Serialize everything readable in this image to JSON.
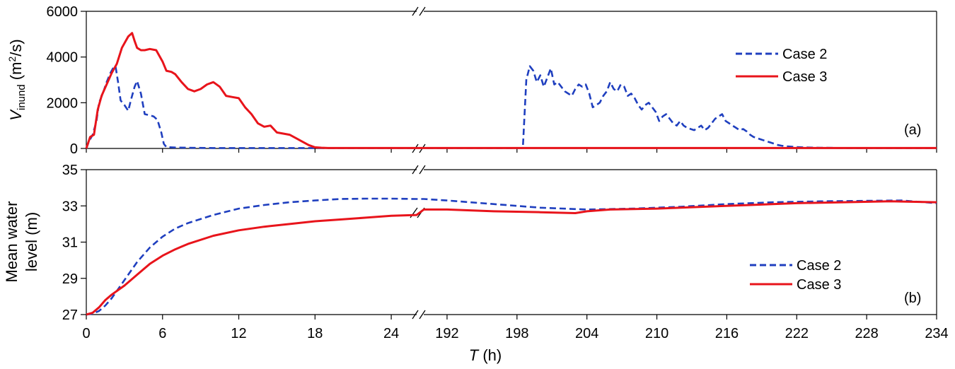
{
  "chart_data": [
    {
      "type": "line",
      "panel_label": "(a)",
      "ylabel_main": "V",
      "ylabel_sub": "inund",
      "ylabel_unit_pre": " (m",
      "ylabel_unit_sup": "2",
      "ylabel_unit_post": "/s)",
      "ylim": [
        0,
        6000
      ],
      "yticks": [
        "0",
        "2000",
        "4000",
        "6000"
      ],
      "yticks_values": [
        0,
        2000,
        4000,
        6000
      ],
      "grid": false,
      "legend_position": "top-right",
      "series": [
        {
          "name": "Case 2",
          "color": "#1f3fbf",
          "dash": "dashed",
          "x": [
            0,
            0.2,
            0.5,
            0.8,
            1.0,
            1.3,
            1.6,
            1.9,
            2.1,
            2.3,
            2.5,
            2.7,
            3.0,
            3.3,
            3.5,
            3.8,
            4.0,
            4.3,
            4.6,
            5.0,
            5.3,
            5.6,
            5.9,
            6.1,
            6.3,
            7,
            8,
            10,
            12,
            14,
            16,
            18,
            19.5,
            24,
            26,
            190,
            196,
            198.5,
            198.8,
            199.1,
            199.4,
            199.7,
            200.0,
            200.3,
            200.6,
            200.9,
            201.2,
            201.5,
            201.8,
            202.1,
            202.4,
            202.7,
            203.0,
            203.3,
            203.6,
            203.9,
            204.2,
            204.5,
            204.8,
            205.1,
            205.4,
            205.7,
            206.0,
            206.3,
            206.6,
            206.9,
            207.2,
            207.5,
            207.8,
            208.1,
            208.4,
            208.7,
            209.0,
            209.3,
            209.6,
            209.9,
            210.2,
            210.5,
            210.8,
            211.1,
            211.4,
            211.7,
            212.0,
            212.3,
            212.6,
            212.9,
            213.2,
            213.5,
            213.8,
            214.1,
            214.4,
            214.7,
            215.0,
            215.3,
            215.6,
            215.9,
            216.2,
            216.5,
            216.8,
            217.1,
            217.4,
            217.7,
            218.0,
            218.3,
            218.6,
            218.9,
            219.2,
            219.5,
            219.8,
            220.1,
            220.4,
            220.7,
            221.0,
            221.5,
            222.0,
            222.5,
            223,
            224,
            226,
            228,
            230,
            232,
            234
          ],
          "y": [
            0,
            300,
            600,
            1200,
            2000,
            2400,
            2900,
            3300,
            3500,
            3600,
            2900,
            2100,
            1900,
            1650,
            2100,
            2700,
            2950,
            2400,
            1500,
            1450,
            1400,
            1250,
            700,
            200,
            60,
            40,
            30,
            20,
            20,
            20,
            20,
            20,
            20,
            20,
            20,
            20,
            20,
            20,
            3000,
            3600,
            3400,
            2900,
            3200,
            2700,
            3100,
            3500,
            2800,
            2900,
            2700,
            2500,
            2400,
            2300,
            2600,
            2800,
            2700,
            2800,
            2400,
            1800,
            1900,
            2000,
            2300,
            2500,
            2900,
            2600,
            2500,
            2800,
            2700,
            2300,
            2400,
            2200,
            1900,
            1700,
            1900,
            2000,
            1800,
            1600,
            1200,
            1400,
            1500,
            1300,
            1100,
            1000,
            1200,
            1000,
            900,
            850,
            800,
            900,
            1000,
            800,
            900,
            1100,
            1300,
            1400,
            1500,
            1200,
            1100,
            1000,
            900,
            800,
            850,
            750,
            600,
            500,
            450,
            400,
            350,
            300,
            250,
            200,
            150,
            120,
            100,
            80,
            60,
            50,
            40,
            30,
            20,
            20,
            20,
            20,
            20
          ]
        },
        {
          "name": "Case 3",
          "color": "#e8141b",
          "dash": "solid",
          "x": [
            0,
            0.3,
            0.6,
            0.9,
            1.2,
            1.6,
            2.0,
            2.4,
            2.8,
            3.1,
            3.3,
            3.6,
            3.8,
            4.0,
            4.3,
            4.6,
            5.0,
            5.5,
            6.0,
            6.3,
            6.7,
            7.0,
            7.5,
            8.0,
            8.5,
            9.0,
            9.5,
            10.0,
            10.5,
            11.0,
            11.5,
            12.0,
            12.5,
            13.0,
            13.5,
            14.0,
            14.5,
            15.0,
            15.5,
            16.0,
            16.5,
            17.0,
            17.5,
            18.0,
            18.5,
            19.0,
            20,
            22,
            24,
            26,
            190,
            200,
            210,
            220,
            234
          ],
          "y": [
            0,
            500,
            600,
            1700,
            2300,
            2800,
            3300,
            3700,
            4400,
            4700,
            4900,
            5050,
            4700,
            4400,
            4300,
            4300,
            4350,
            4300,
            3800,
            3400,
            3350,
            3250,
            2900,
            2600,
            2500,
            2600,
            2800,
            2900,
            2700,
            2300,
            2250,
            2200,
            1800,
            1500,
            1100,
            950,
            1000,
            700,
            650,
            600,
            450,
            300,
            150,
            50,
            30,
            20,
            20,
            20,
            20,
            20,
            20,
            20,
            20,
            20,
            20
          ]
        }
      ]
    },
    {
      "type": "line",
      "panel_label": "(b)",
      "ylabel_line1": "Mean water",
      "ylabel_line2": "level (m)",
      "ylim": [
        27,
        35
      ],
      "yticks": [
        "27",
        "29",
        "31",
        "33",
        "35"
      ],
      "yticks_values": [
        27,
        29,
        31,
        33,
        35
      ],
      "xlabel_main": "T",
      "xlabel_unit": " (h)",
      "xticks": [
        "0",
        "6",
        "12",
        "18",
        "24",
        "192",
        "198",
        "204",
        "210",
        "216",
        "222",
        "228",
        "234"
      ],
      "xticks_values": [
        0,
        6,
        12,
        18,
        24,
        192,
        198,
        204,
        210,
        216,
        222,
        228,
        234
      ],
      "x_axis_break": "26 // 190",
      "grid": false,
      "legend_position": "bottom-right",
      "series": [
        {
          "name": "Case 2",
          "color": "#1f3fbf",
          "dash": "dashed",
          "x": [
            0,
            0.5,
            1,
            1.5,
            2,
            3,
            4,
            5,
            6,
            7,
            8,
            10,
            12,
            14,
            16,
            18,
            20,
            22,
            24,
            26,
            190,
            192,
            196,
            200,
            204,
            208,
            212,
            216,
            220,
            224,
            228,
            231,
            234
          ],
          "y": [
            27.0,
            27.05,
            27.2,
            27.5,
            27.9,
            28.9,
            29.9,
            30.7,
            31.3,
            31.75,
            32.05,
            32.5,
            32.85,
            33.05,
            33.2,
            33.3,
            33.38,
            33.4,
            33.4,
            33.38,
            33.38,
            33.3,
            33.1,
            32.9,
            32.8,
            32.85,
            32.95,
            33.1,
            33.2,
            33.25,
            33.28,
            33.3,
            33.15
          ]
        },
        {
          "name": "Case 3",
          "color": "#e8141b",
          "dash": "solid",
          "x": [
            0,
            0.5,
            1,
            1.5,
            2,
            3,
            4,
            5,
            6,
            7,
            8,
            10,
            12,
            14,
            16,
            18,
            20,
            22,
            24,
            26,
            190,
            192,
            196,
            200,
            203,
            204,
            206,
            210,
            214,
            218,
            222,
            226,
            230,
            234
          ],
          "y": [
            27.0,
            27.1,
            27.4,
            27.8,
            28.1,
            28.6,
            29.2,
            29.8,
            30.25,
            30.6,
            30.9,
            31.35,
            31.65,
            31.85,
            32.0,
            32.15,
            32.25,
            32.35,
            32.45,
            32.5,
            32.8,
            32.8,
            32.7,
            32.65,
            32.6,
            32.7,
            32.8,
            32.85,
            32.95,
            33.05,
            33.15,
            33.2,
            33.25,
            33.2
          ]
        }
      ]
    }
  ]
}
